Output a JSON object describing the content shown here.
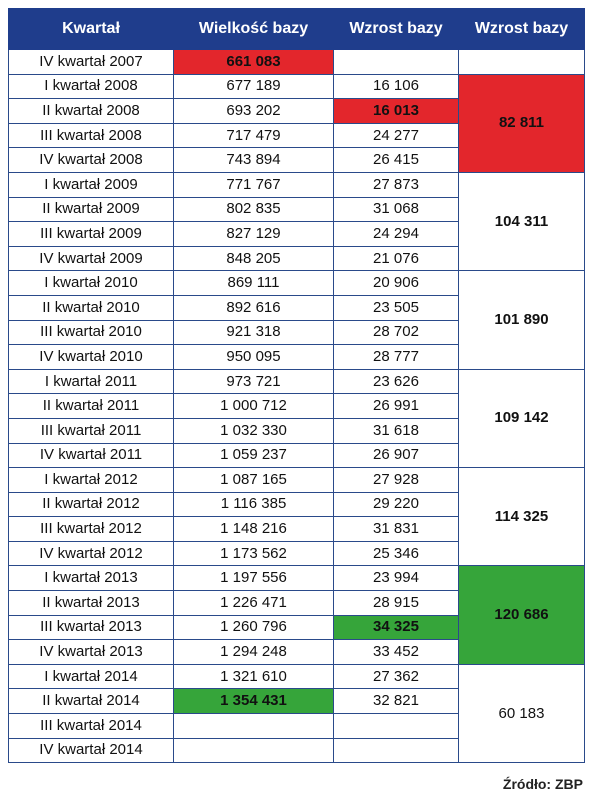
{
  "headers": [
    "Kwartał",
    "Wielkość bazy",
    "Wzrost bazy",
    "Wzrost bazy"
  ],
  "rows": [
    {
      "q": "IV kwartał 2007",
      "size": "661 083",
      "growth": ""
    },
    {
      "q": "I kwartał 2008",
      "size": "677 189",
      "growth": "16 106"
    },
    {
      "q": "II kwartał 2008",
      "size": "693 202",
      "growth": "16 013"
    },
    {
      "q": "III kwartał 2008",
      "size": "717 479",
      "growth": "24 277"
    },
    {
      "q": "IV kwartał 2008",
      "size": "743 894",
      "growth": "26 415"
    },
    {
      "q": "I kwartał 2009",
      "size": "771 767",
      "growth": "27 873"
    },
    {
      "q": "II kwartał 2009",
      "size": "802 835",
      "growth": "31 068"
    },
    {
      "q": "III kwartał 2009",
      "size": "827 129",
      "growth": "24 294"
    },
    {
      "q": "IV kwartał 2009",
      "size": "848 205",
      "growth": "21 076"
    },
    {
      "q": "I kwartał 2010",
      "size": "869 111",
      "growth": "20 906"
    },
    {
      "q": "II kwartał 2010",
      "size": "892 616",
      "growth": "23 505"
    },
    {
      "q": "III kwartał 2010",
      "size": "921 318",
      "growth": "28 702"
    },
    {
      "q": "IV kwartał 2010",
      "size": "950 095",
      "growth": "28 777"
    },
    {
      "q": "I kwartał 2011",
      "size": "973 721",
      "growth": "23 626"
    },
    {
      "q": "II kwartał 2011",
      "size": "1 000 712",
      "growth": "26 991"
    },
    {
      "q": "III kwartał 2011",
      "size": "1 032 330",
      "growth": "31 618"
    },
    {
      "q": "IV kwartał 2011",
      "size": "1 059 237",
      "growth": "26 907"
    },
    {
      "q": "I kwartał 2012",
      "size": "1 087 165",
      "growth": "27 928"
    },
    {
      "q": "II kwartał 2012",
      "size": "1 116 385",
      "growth": "29 220"
    },
    {
      "q": "III kwartał 2012",
      "size": "1 148 216",
      "growth": "31 831"
    },
    {
      "q": "IV kwartał 2012",
      "size": "1 173 562",
      "growth": "25 346"
    },
    {
      "q": "I kwartał 2013",
      "size": "1 197 556",
      "growth": "23 994"
    },
    {
      "q": "II kwartał 2013",
      "size": "1 226 471",
      "growth": "28 915"
    },
    {
      "q": "III kwartał 2013",
      "size": "1 260 796",
      "growth": "34 325"
    },
    {
      "q": "IV kwartał 2013",
      "size": "1 294 248",
      "growth": "33 452"
    },
    {
      "q": "I kwartał 2014",
      "size": "1 321 610",
      "growth": "27 362"
    },
    {
      "q": "II kwartał 2014",
      "size": "1 354 431",
      "growth": "32 821"
    },
    {
      "q": "III kwartał 2014",
      "size": "",
      "growth": ""
    },
    {
      "q": "IV kwartał 2014",
      "size": "",
      "growth": ""
    }
  ],
  "yearly_growth": [
    "82 811",
    "104 311",
    "101 890",
    "109 142",
    "114 325",
    "120 686",
    "60 183"
  ],
  "highlights": {
    "red": "#e3262c",
    "green": "#36a53a",
    "header": "#1f3d8c"
  },
  "source": "Źródło: ZBP"
}
